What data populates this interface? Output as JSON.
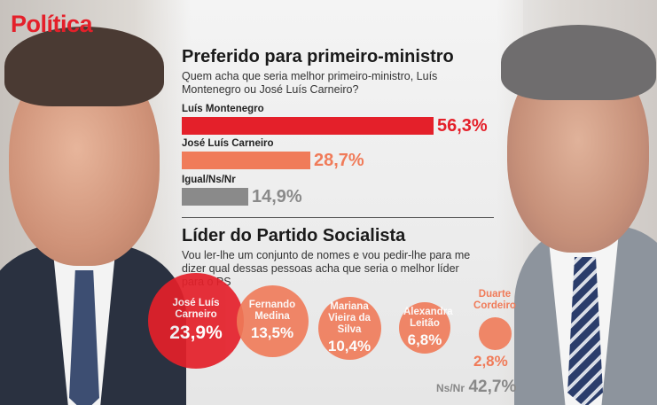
{
  "section": "Política",
  "chart_data": [
    {
      "type": "bar",
      "title": "Preferido para primeiro-ministro",
      "subtitle": "Quem acha que seria melhor primeiro-ministro, Luís Montenegro ou José Luís Carneiro?",
      "categories": [
        "Luís Montenegro",
        "José Luís Carneiro",
        "Igual/Ns/Nr"
      ],
      "values": [
        56.3,
        28.7,
        14.9
      ],
      "value_labels": [
        "56,3%",
        "28,7%",
        "14,9%"
      ],
      "colors": [
        "#e4202a",
        "#f07b59",
        "#8a8a8a"
      ],
      "ylim": [
        0,
        100
      ]
    },
    {
      "type": "bubble",
      "title": "Líder do Partido Socialista",
      "subtitle": "Vou ler-lhe um conjunto de nomes e vou pedir-lhe para me dizer qual dessas pessoas acha que seria o melhor líder para o PS",
      "categories": [
        "José Luís Carneiro",
        "Fernando Medina",
        "Mariana Vieira da Silva",
        "Alexandra Leitão",
        "Duarte Cordeiro"
      ],
      "values": [
        23.9,
        13.5,
        10.4,
        6.8,
        2.8
      ],
      "value_labels": [
        "23,9%",
        "13,5%",
        "10,4%",
        "6,8%",
        "2,8%"
      ],
      "colors": [
        "#e4202a",
        "#f07b59",
        "#f07b59",
        "#f07b59",
        "#f07b59"
      ],
      "other": {
        "label": "Ns/Nr",
        "value": 42.7,
        "value_label": "42,7%"
      }
    }
  ]
}
